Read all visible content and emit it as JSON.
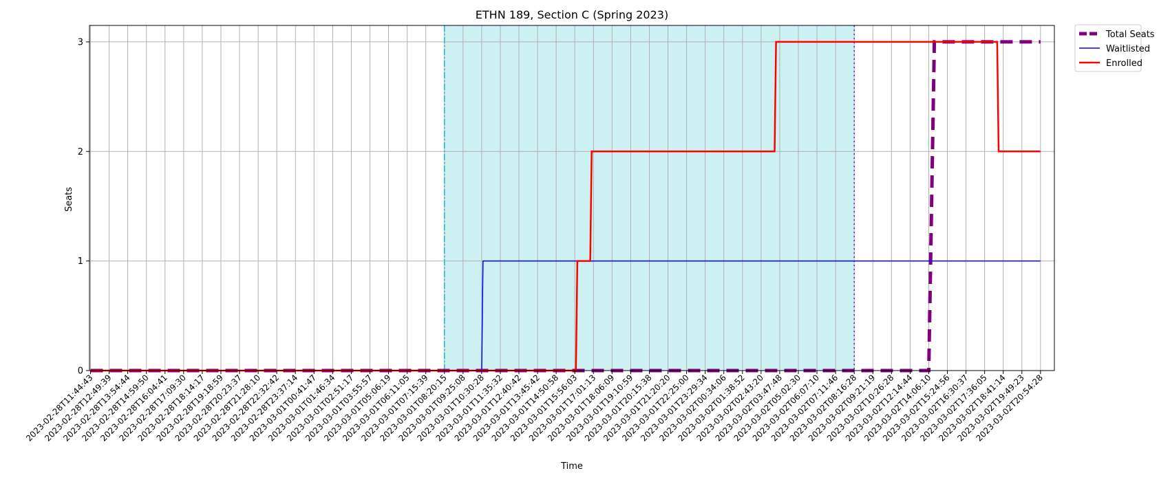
{
  "chart_data": {
    "type": "line",
    "title": "ETHN 189, Section C (Spring 2023)",
    "xlabel": "Time",
    "ylabel": "Seats",
    "ylim": [
      0,
      3.15
    ],
    "yticks": [
      0,
      1,
      2,
      3
    ],
    "grid": true,
    "legend_position": "outside top-right",
    "x_tick_labels": [
      "2023-02-28T11:44:43",
      "2023-02-28T12:49:39",
      "2023-02-28T13:54:44",
      "2023-02-28T14:59:50",
      "2023-02-28T16:04:41",
      "2023-02-28T17:09:30",
      "2023-02-28T18:14:17",
      "2023-02-28T19:18:59",
      "2023-02-28T20:23:37",
      "2023-02-28T21:28:10",
      "2023-02-28T22:32:42",
      "2023-02-28T23:37:14",
      "2023-03-01T00:41:47",
      "2023-03-01T01:46:34",
      "2023-03-01T02:51:17",
      "2023-03-01T03:55:57",
      "2023-03-01T05:06:19",
      "2023-03-01T06:11:05",
      "2023-03-01T07:15:39",
      "2023-03-01T08:20:15",
      "2023-03-01T09:25:08",
      "2023-03-01T10:30:28",
      "2023-03-01T11:35:32",
      "2023-03-01T12:40:42",
      "2023-03-01T13:45:42",
      "2023-03-01T14:50:58",
      "2023-03-01T15:56:03",
      "2023-03-01T17:01:13",
      "2023-03-01T18:06:09",
      "2023-03-01T19:10:59",
      "2023-03-01T20:15:38",
      "2023-03-01T21:20:20",
      "2023-03-01T22:25:00",
      "2023-03-01T23:29:34",
      "2023-03-02T00:34:06",
      "2023-03-02T01:38:52",
      "2023-03-02T02:43:20",
      "2023-03-02T03:47:48",
      "2023-03-02T05:02:30",
      "2023-03-02T06:07:10",
      "2023-03-02T07:11:46",
      "2023-03-02T08:16:28",
      "2023-03-02T09:21:19",
      "2023-03-02T10:26:28",
      "2023-03-02T12:14:44",
      "2023-03-02T14:06:10",
      "2023-03-02T15:24:56",
      "2023-03-02T16:30:37",
      "2023-03-02T17:36:05",
      "2023-03-02T18:41:14",
      "2023-03-02T19:49:23",
      "2023-03-02T20:54:28"
    ],
    "shaded_region": {
      "start": "2023-03-01T08:20:15",
      "end": "2023-03-02T08:16:28",
      "color": "#cdf1f3"
    },
    "vertical_lines": [
      {
        "at": "2023-03-01T08:20:15",
        "style": "dashdot",
        "color": "#17becf"
      },
      {
        "at": "2023-03-02T08:16:28",
        "style": "dotted",
        "color": "#4b2bd1"
      }
    ],
    "series": [
      {
        "name": "Total Seats",
        "color": "#800080",
        "style": "dashed",
        "steps": [
          {
            "x": "2023-02-28T11:44:43",
            "y": 0
          },
          {
            "x": "2023-03-02T14:06:10",
            "y": 0
          },
          {
            "x": "2023-03-02T14:30:00",
            "y": 3
          },
          {
            "x": "2023-03-02T20:54:28",
            "y": 3
          }
        ]
      },
      {
        "name": "Waitlisted",
        "color": "#0000ff",
        "style": "solid",
        "steps": [
          {
            "x": "2023-02-28T11:44:43",
            "y": 0
          },
          {
            "x": "2023-03-01T10:30:28",
            "y": 0
          },
          {
            "x": "2023-03-01T10:35:00",
            "y": 1
          },
          {
            "x": "2023-03-02T20:54:28",
            "y": 1
          }
        ]
      },
      {
        "name": "Enrolled",
        "color": "#ff0000",
        "style": "solid",
        "steps": [
          {
            "x": "2023-02-28T11:44:43",
            "y": 0
          },
          {
            "x": "2023-03-01T16:00:00",
            "y": 0
          },
          {
            "x": "2023-03-01T16:05:00",
            "y": 1
          },
          {
            "x": "2023-03-01T16:50:00",
            "y": 1
          },
          {
            "x": "2023-03-01T16:55:00",
            "y": 2
          },
          {
            "x": "2023-03-02T03:30:00",
            "y": 2
          },
          {
            "x": "2023-03-02T03:35:00",
            "y": 3
          },
          {
            "x": "2023-03-02T18:20:00",
            "y": 3
          },
          {
            "x": "2023-03-02T18:25:00",
            "y": 2
          },
          {
            "x": "2023-03-02T20:54:28",
            "y": 2
          }
        ]
      }
    ]
  }
}
